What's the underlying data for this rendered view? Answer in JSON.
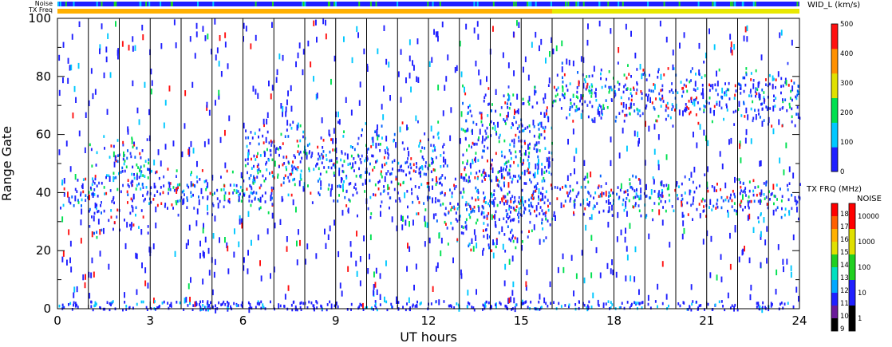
{
  "chart_data": {
    "type": "heatmap",
    "xlabel": "UT hours",
    "ylabel": "Range Gate",
    "xlim": [
      0,
      24
    ],
    "ylim": [
      0,
      100
    ],
    "x_ticks": [
      "0",
      "3",
      "6",
      "9",
      "12",
      "15",
      "18",
      "21",
      "24"
    ],
    "x_tick_values": [
      0,
      3,
      6,
      9,
      12,
      15,
      18,
      21,
      24
    ],
    "y_ticks": [
      "0",
      "20",
      "40",
      "60",
      "80",
      "100"
    ],
    "y_tick_values": [
      0,
      20,
      40,
      60,
      80,
      100
    ],
    "scan_boundaries_ut": [
      1,
      2,
      3,
      4,
      5,
      6,
      7,
      8,
      9,
      10,
      11,
      12,
      13,
      14,
      15,
      16,
      17,
      18,
      19,
      20,
      21,
      22,
      23
    ],
    "status_bars": {
      "noise_label": "Noise",
      "txfreq_label": "TX Freq",
      "txfreq_change_ut": 16.0
    },
    "echo_bands": [
      {
        "ut_start": 0.0,
        "ut_end": 1.0,
        "gate_low": 34,
        "gate_high": 46
      },
      {
        "ut_start": 1.0,
        "ut_end": 3.0,
        "gate_low": 24,
        "gate_high": 62
      },
      {
        "ut_start": 3.0,
        "ut_end": 7.0,
        "gate_low": 32,
        "gate_high": 50
      },
      {
        "ut_start": 6.0,
        "ut_end": 9.0,
        "gate_low": 36,
        "gate_high": 66
      },
      {
        "ut_start": 9.0,
        "ut_end": 12.5,
        "gate_low": 30,
        "gate_high": 66
      },
      {
        "ut_start": 12.5,
        "ut_end": 16.0,
        "gate_low": 18,
        "gate_high": 50
      },
      {
        "ut_start": 13.0,
        "ut_end": 16.0,
        "gate_low": 30,
        "gate_high": 80
      },
      {
        "ut_start": 16.0,
        "ut_end": 24.0,
        "gate_low": 30,
        "gate_high": 48
      },
      {
        "ut_start": 16.0,
        "ut_end": 24.0,
        "gate_low": 62,
        "gate_high": 86
      }
    ],
    "colorbar_width": {
      "title": "WID_L (km/s)",
      "ticks": [
        "0",
        "100",
        "200",
        "300",
        "400",
        "500"
      ],
      "tick_values": [
        0,
        100,
        200,
        300,
        400,
        500
      ],
      "colors": [
        "#1f1fff",
        "#00c8ff",
        "#00e050",
        "#e0e000",
        "#ff9000",
        "#ff1010"
      ]
    },
    "colorbar_txfreq": {
      "title": "TX FRQ (MHz)",
      "ticks": [
        "9",
        "10",
        "11",
        "12",
        "13",
        "14",
        "15",
        "16",
        "17",
        "18"
      ],
      "colors": [
        "#000000",
        "#6a1a9a",
        "#2020ff",
        "#00a8ff",
        "#00e0c0",
        "#20d020",
        "#e0e000",
        "#ffb000",
        "#ff6000",
        "#ff0000"
      ]
    },
    "colorbar_noise": {
      "title": "NOISE",
      "ticks": [
        "1",
        "10",
        "100",
        "1000",
        "10000"
      ],
      "colors": [
        "#000000",
        "#2020ff",
        "#20d020",
        "#e0e000",
        "#ff0000"
      ]
    }
  }
}
